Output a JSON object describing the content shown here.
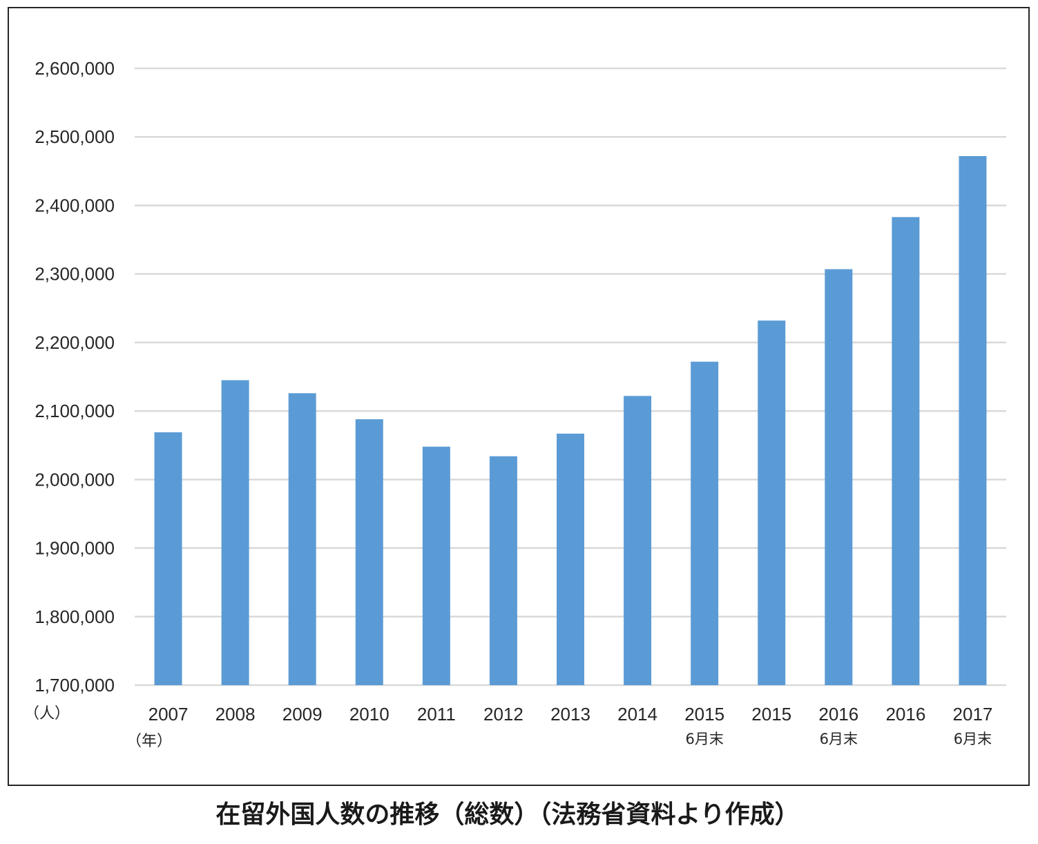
{
  "caption": "在留外国人数の推移（総数）（法務省資料より作成）",
  "colors": {
    "bar": "#5b9bd5",
    "grid": "#d9d9d9",
    "text": "#262626"
  },
  "chart_data": {
    "type": "bar",
    "title": "",
    "xlabel": "（年）",
    "ylabel": "（人）",
    "ylim": [
      1700000,
      2600000
    ],
    "yticks": [
      1700000,
      1800000,
      1900000,
      2000000,
      2100000,
      2200000,
      2300000,
      2400000,
      2500000,
      2600000
    ],
    "ytick_labels": [
      "1,700,000",
      "1,800,000",
      "1,900,000",
      "2,000,000",
      "2,100,000",
      "2,200,000",
      "2,300,000",
      "2,400,000",
      "2,500,000",
      "2,600,000"
    ],
    "grid": true,
    "legend": "none",
    "categories": [
      {
        "year": "2007",
        "sub": ""
      },
      {
        "year": "2008",
        "sub": ""
      },
      {
        "year": "2009",
        "sub": ""
      },
      {
        "year": "2010",
        "sub": ""
      },
      {
        "year": "2011",
        "sub": ""
      },
      {
        "year": "2012",
        "sub": ""
      },
      {
        "year": "2013",
        "sub": ""
      },
      {
        "year": "2014",
        "sub": ""
      },
      {
        "year": "2015",
        "sub": "6月末"
      },
      {
        "year": "2015",
        "sub": ""
      },
      {
        "year": "2016",
        "sub": "6月末"
      },
      {
        "year": "2016",
        "sub": ""
      },
      {
        "year": "2017",
        "sub": "6月末"
      }
    ],
    "values": [
      2069000,
      2145000,
      2126000,
      2088000,
      2048000,
      2034000,
      2067000,
      2122000,
      2172000,
      2232000,
      2307000,
      2383000,
      2472000
    ]
  }
}
